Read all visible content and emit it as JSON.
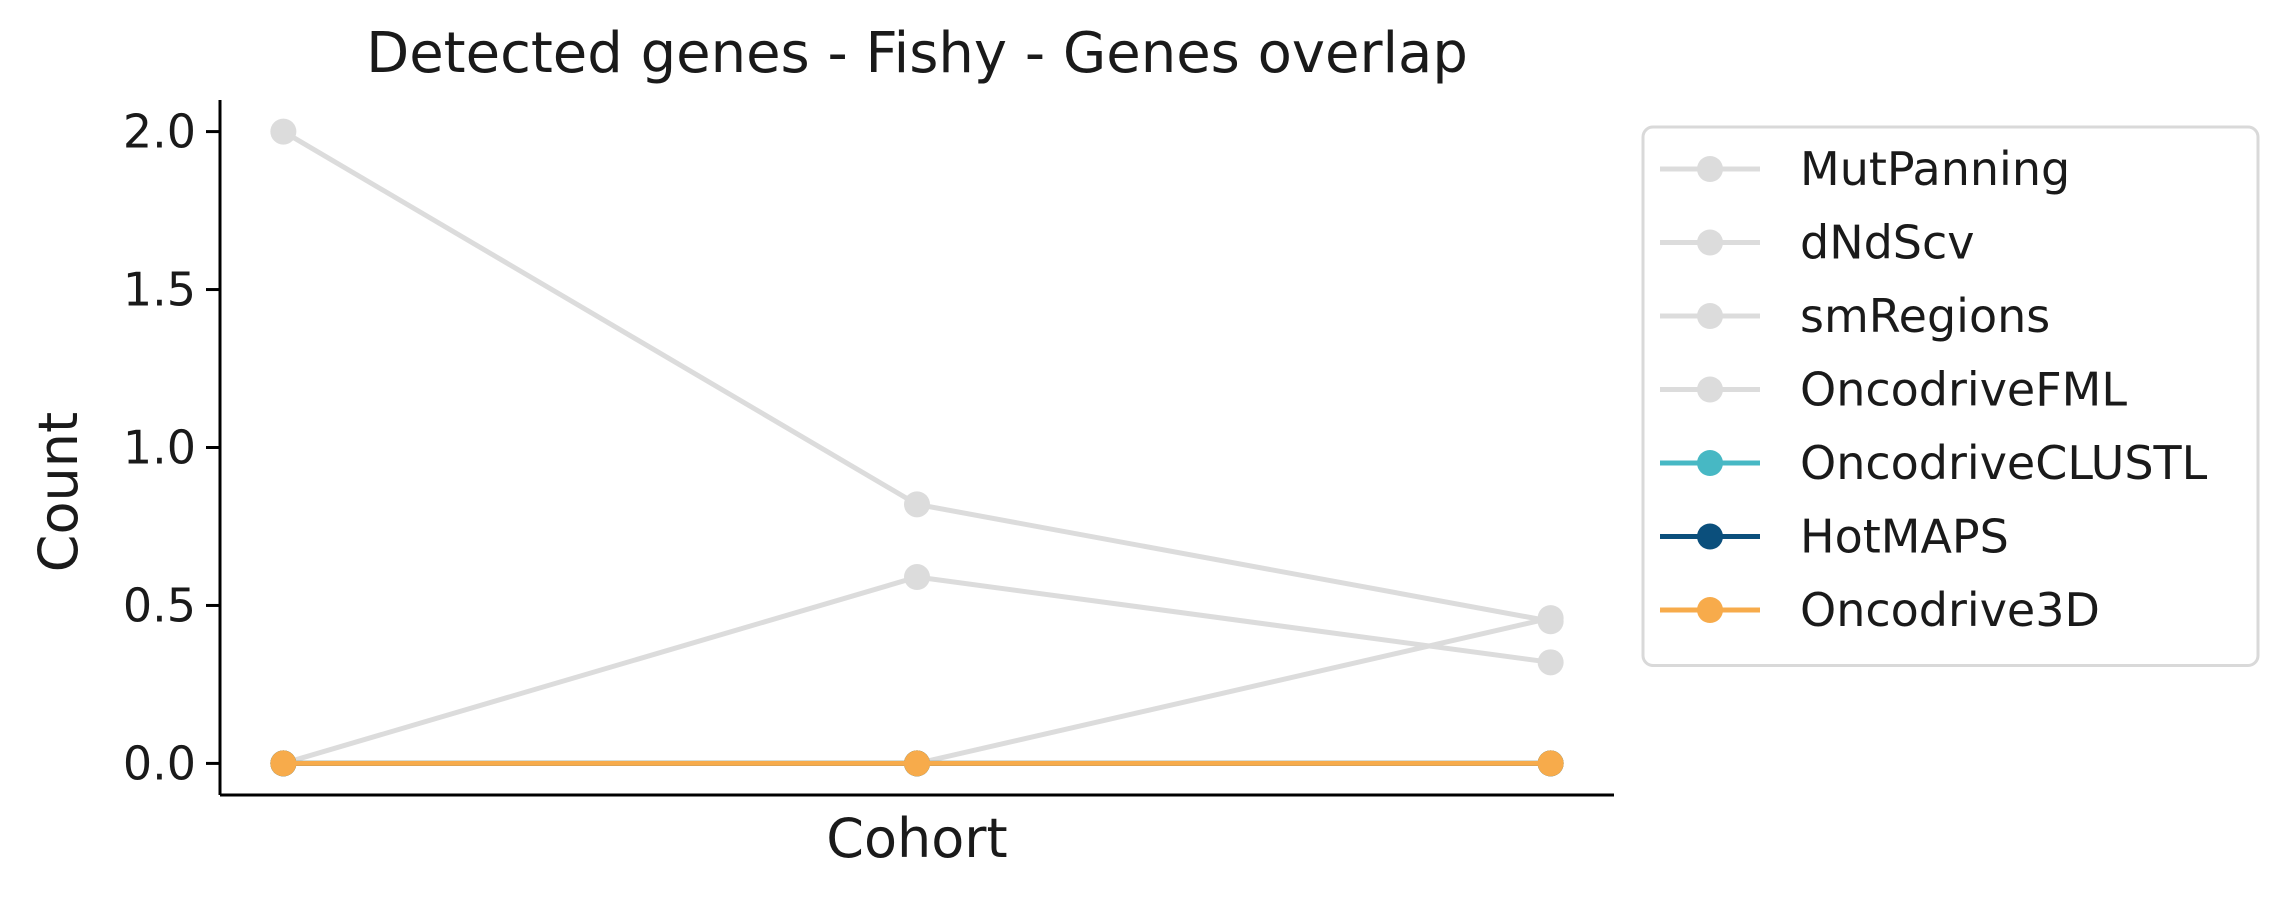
{
  "chart_data": {
    "type": "line",
    "title": "Detected genes - Fishy - Genes overlap",
    "xlabel": "Cohort",
    "ylabel": "Count",
    "x": [
      0,
      1,
      2
    ],
    "xlim": [
      -0.1,
      2.1
    ],
    "ylim": [
      -0.1,
      2.1
    ],
    "yticks": [
      0.0,
      0.5,
      1.0,
      1.5,
      2.0
    ],
    "ytick_labels": [
      "0.0",
      "0.5",
      "1.0",
      "1.5",
      "2.0"
    ],
    "xticks": [],
    "grid": false,
    "legend_position": "outside-right",
    "series": [
      {
        "name": "MutPanning",
        "values": [
          2.0,
          0.82,
          0.45
        ],
        "color": "#dcdcdc"
      },
      {
        "name": "dNdScv",
        "values": [
          0.0,
          0.59,
          0.32
        ],
        "color": "#dcdcdc"
      },
      {
        "name": "smRegions",
        "values": [
          0.0,
          0.0,
          0.46
        ],
        "color": "#dcdcdc"
      },
      {
        "name": "OncodriveFML",
        "values": [
          0.0,
          0.0,
          0.0
        ],
        "color": "#dcdcdc"
      },
      {
        "name": "OncodriveCLUSTL",
        "values": [
          0.0,
          0.0,
          0.0
        ],
        "color": "#47b8c4"
      },
      {
        "name": "HotMAPS",
        "values": [
          0.0,
          0.0,
          0.0
        ],
        "color": "#0b4f7c"
      },
      {
        "name": "Oncodrive3D",
        "values": [
          0.0,
          0.0,
          0.0
        ],
        "color": "#f7ab4b"
      }
    ]
  }
}
